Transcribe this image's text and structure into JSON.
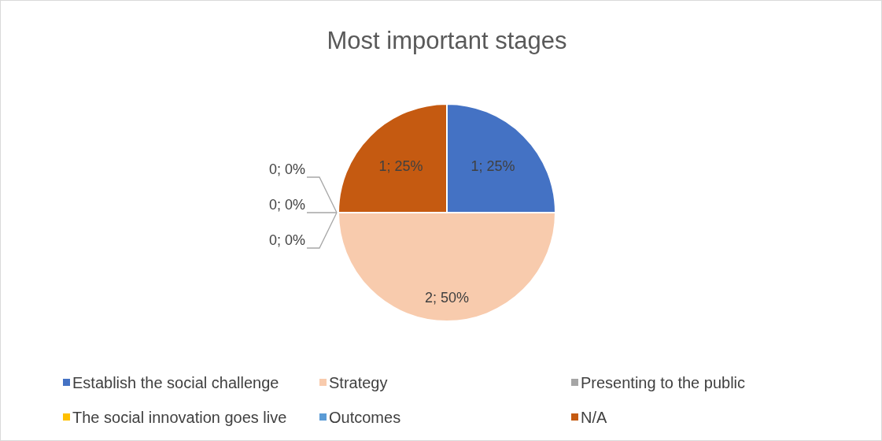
{
  "chart_data": {
    "type": "pie",
    "title": "Most important stages",
    "categories": [
      "Establish the social challenge",
      "Strategy",
      "Presenting to the public",
      "The social innovation goes live",
      "Outcomes",
      "N/A"
    ],
    "values": [
      1,
      2,
      0,
      0,
      0,
      1
    ],
    "colors": [
      "#4472c4",
      "#f8cbad",
      "#a5a5a5",
      "#ffc000",
      "#5b9bd5",
      "#c55a11"
    ],
    "value_labels": [
      "1; 25%",
      "2; 50%",
      "0; 0%",
      "0; 0%",
      "0; 0%",
      "1; 25%"
    ],
    "legend": "bottom"
  }
}
